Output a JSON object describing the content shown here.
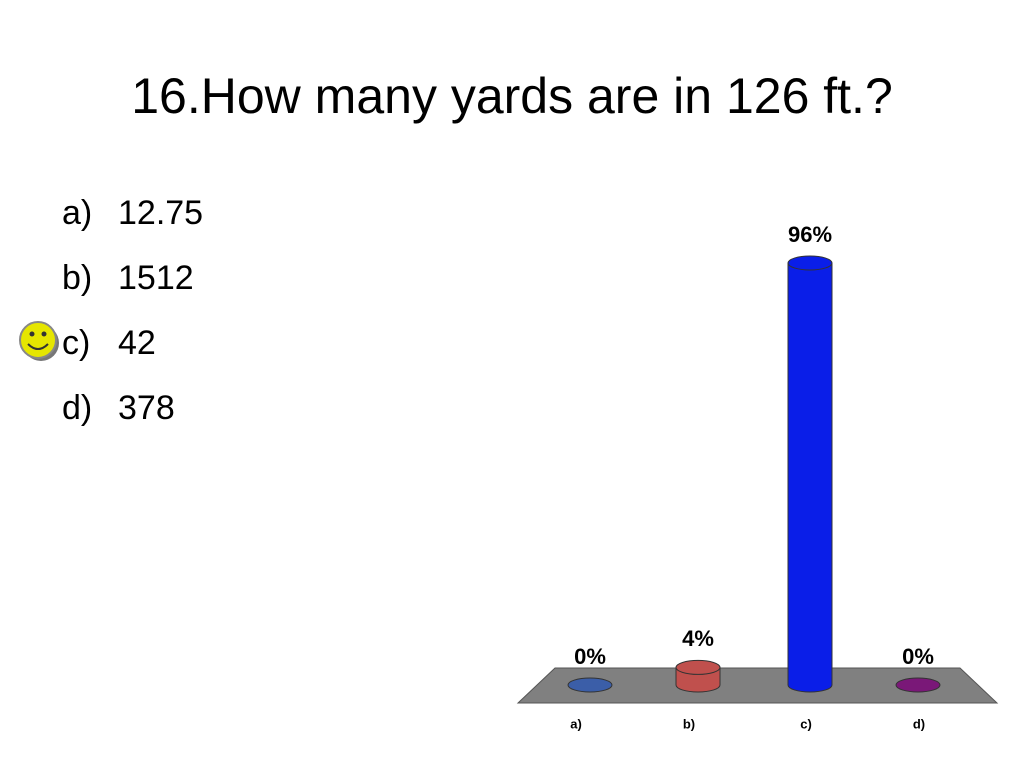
{
  "slide": {
    "title": "16.How many yards are in 126 ft.?",
    "options": [
      {
        "letter": "a)",
        "text": "12.75"
      },
      {
        "letter": "b)",
        "text": "1512"
      },
      {
        "letter": "c)",
        "text": "42"
      },
      {
        "letter": "d)",
        "text": "378"
      }
    ]
  },
  "chart_data": {
    "type": "bar",
    "categories": [
      "a)",
      "b)",
      "c)",
      "d)"
    ],
    "values": [
      0,
      4,
      96,
      0
    ],
    "value_labels": [
      "0%",
      "4%",
      "96%",
      "0%"
    ],
    "colors": [
      "#3b5ea8",
      "#c0504d",
      "#0a1ee8",
      "#7a1878"
    ]
  }
}
